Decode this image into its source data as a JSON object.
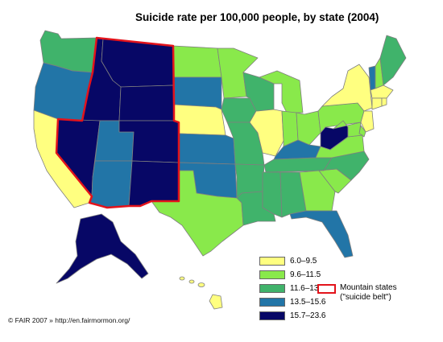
{
  "title": "Suicide rate per 100,000 people, by state (2004)",
  "credit": "© FAIR 2007 » http://en.fairmormon.org/",
  "legend": {
    "bins": [
      {
        "label": "6.0–9.5",
        "color": "#ffff80"
      },
      {
        "label": "9.6–11.5",
        "color": "#89e94b"
      },
      {
        "label": "11.6–13.4",
        "color": "#40b36b"
      },
      {
        "label": "13.5–15.6",
        "color": "#2275a7"
      },
      {
        "label": "15.7–23.6",
        "color": "#070766"
      }
    ],
    "mountain_line1": "Mountain states",
    "mountain_line2": "(\"suicide belt\")",
    "mountain_color": "#e3131b"
  },
  "states": [
    {
      "name": "Washington",
      "bin": 2
    },
    {
      "name": "Oregon",
      "bin": 3
    },
    {
      "name": "California",
      "bin": 0
    },
    {
      "name": "Idaho",
      "bin": 4
    },
    {
      "name": "Nevada",
      "bin": 4
    },
    {
      "name": "Montana",
      "bin": 4
    },
    {
      "name": "Wyoming",
      "bin": 4
    },
    {
      "name": "Utah",
      "bin": 3
    },
    {
      "name": "Arizona",
      "bin": 3
    },
    {
      "name": "Colorado",
      "bin": 4
    },
    {
      "name": "New Mexico",
      "bin": 4
    },
    {
      "name": "North Dakota",
      "bin": 1
    },
    {
      "name": "South Dakota",
      "bin": 3
    },
    {
      "name": "Nebraska",
      "bin": 0
    },
    {
      "name": "Kansas",
      "bin": 3
    },
    {
      "name": "Oklahoma",
      "bin": 3
    },
    {
      "name": "Texas",
      "bin": 1
    },
    {
      "name": "Minnesota",
      "bin": 1
    },
    {
      "name": "Iowa",
      "bin": 2
    },
    {
      "name": "Missouri",
      "bin": 2
    },
    {
      "name": "Arkansas",
      "bin": 2
    },
    {
      "name": "Louisiana",
      "bin": 2
    },
    {
      "name": "Wisconsin",
      "bin": 2
    },
    {
      "name": "Illinois",
      "bin": 0
    },
    {
      "name": "Michigan",
      "bin": 1
    },
    {
      "name": "Indiana",
      "bin": 1
    },
    {
      "name": "Ohio",
      "bin": 1
    },
    {
      "name": "Kentucky",
      "bin": 3
    },
    {
      "name": "Tennessee",
      "bin": 2
    },
    {
      "name": "Mississippi",
      "bin": 2
    },
    {
      "name": "Alabama",
      "bin": 2
    },
    {
      "name": "Georgia",
      "bin": 1
    },
    {
      "name": "Florida",
      "bin": 3
    },
    {
      "name": "South Carolina",
      "bin": 1
    },
    {
      "name": "North Carolina",
      "bin": 2
    },
    {
      "name": "Virginia",
      "bin": 1
    },
    {
      "name": "West Virginia",
      "bin": 4
    },
    {
      "name": "Pennsylvania",
      "bin": 1
    },
    {
      "name": "New York",
      "bin": 0
    },
    {
      "name": "New Jersey",
      "bin": 0
    },
    {
      "name": "Delaware",
      "bin": 1
    },
    {
      "name": "Maryland",
      "bin": 1
    },
    {
      "name": "Vermont",
      "bin": 3
    },
    {
      "name": "New Hampshire",
      "bin": 1
    },
    {
      "name": "Maine",
      "bin": 2
    },
    {
      "name": "Massachusetts",
      "bin": 0
    },
    {
      "name": "Connecticut",
      "bin": 0
    },
    {
      "name": "Rhode Island",
      "bin": 0
    },
    {
      "name": "Alaska",
      "bin": 4
    },
    {
      "name": "Hawaii",
      "bin": 0
    }
  ]
}
